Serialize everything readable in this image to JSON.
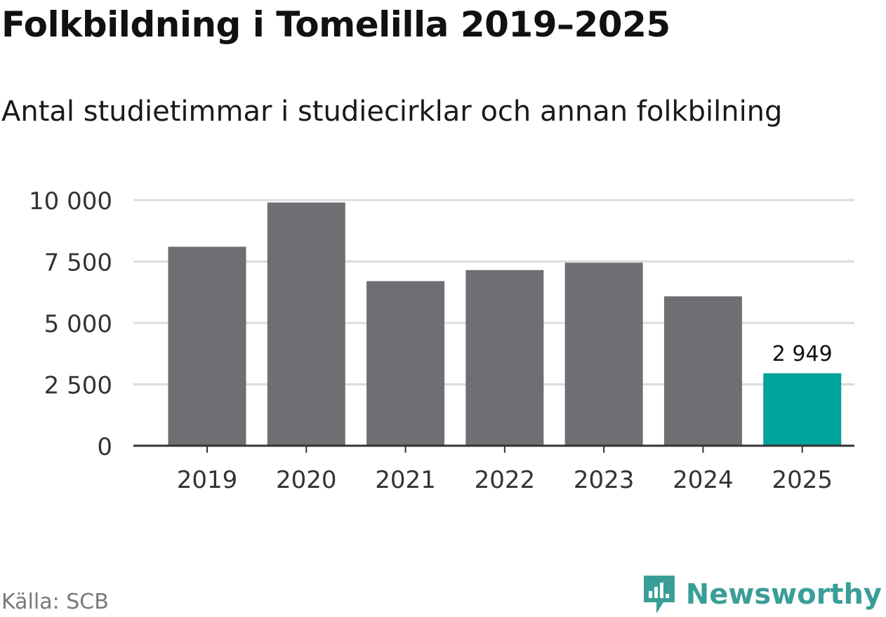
{
  "header": {
    "title": "Folkbildning i Tomelilla 2019–2025",
    "subtitle": "Antal studietimmar i studiecirklar och annan folkbilning"
  },
  "footer": {
    "source": "Källa: SCB",
    "brand_name": "Newsworthy",
    "brand_icon": "newsworthy-logo-icon"
  },
  "colors": {
    "bar": "#6f6e73",
    "highlight": "#00a39a",
    "grid": "#dcdcdc",
    "axis": "#333333",
    "brand": "#3a9e98"
  },
  "chart_data": {
    "type": "bar",
    "categories": [
      "2019",
      "2020",
      "2021",
      "2022",
      "2023",
      "2024",
      "2025"
    ],
    "values": [
      8100,
      9900,
      6700,
      7150,
      7450,
      6080,
      2949
    ],
    "highlight_index": 6,
    "data_labels": [
      {
        "index": 6,
        "text": "2 949"
      }
    ],
    "title": "Folkbildning i Tomelilla 2019–2025",
    "subtitle": "Antal studietimmar i studiecirklar och annan folkbilning",
    "xlabel": "",
    "ylabel": "",
    "ylim": [
      0,
      10000
    ],
    "yticks": [
      0,
      2500,
      5000,
      7500,
      10000
    ],
    "ytick_labels": [
      "0",
      "2 500",
      "5 000",
      "7 500",
      "10 000"
    ],
    "grid": true,
    "legend": "none"
  }
}
